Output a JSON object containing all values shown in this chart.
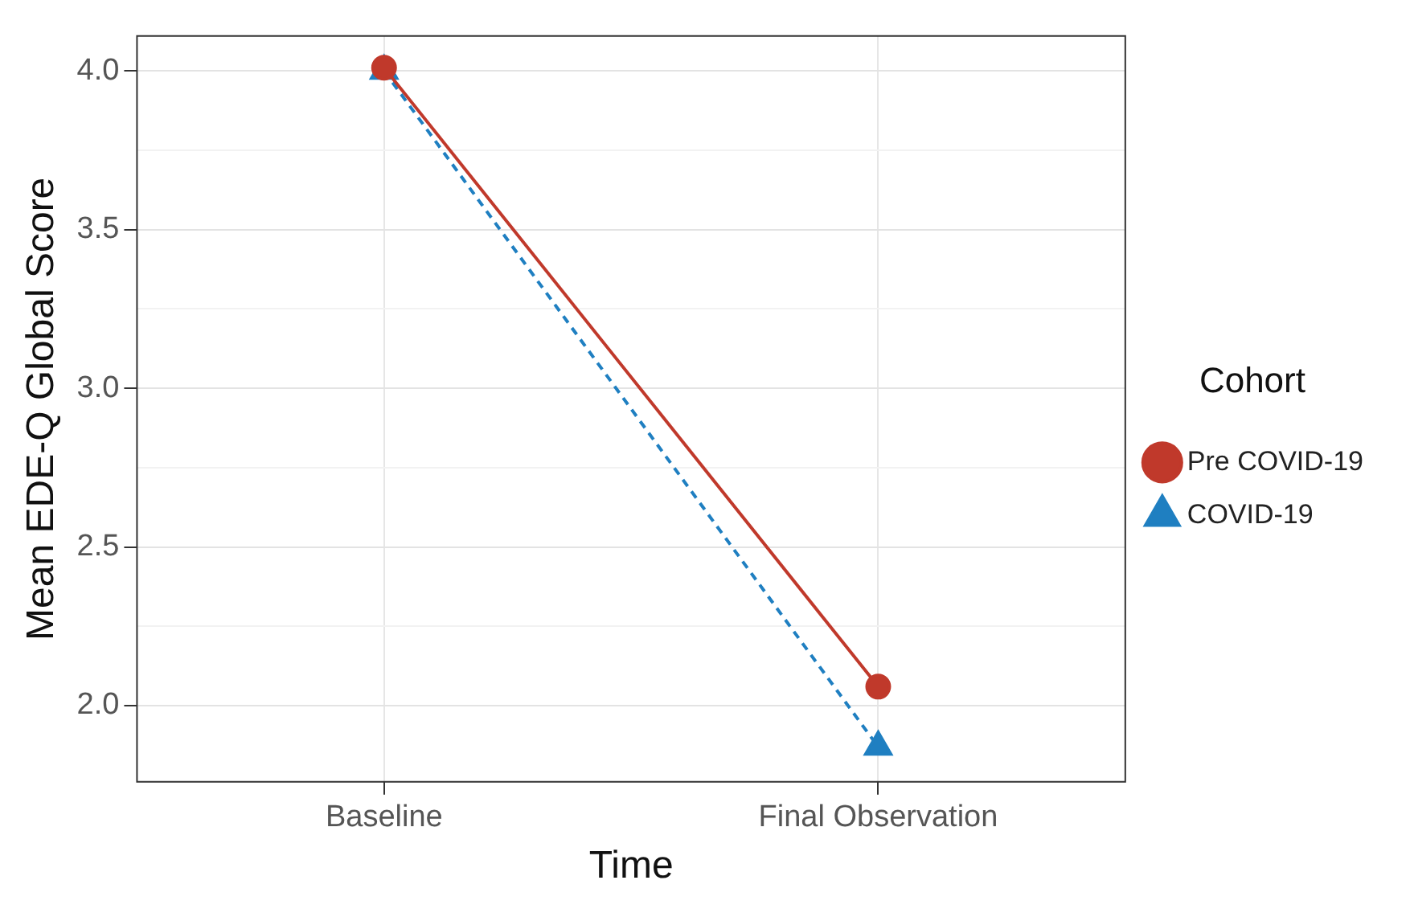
{
  "chart_data": {
    "type": "line",
    "xlabel": "Time",
    "ylabel": "Mean EDE-Q Global Score",
    "legend_title": "Cohort",
    "categories": [
      "Baseline",
      "Final Observation"
    ],
    "series": [
      {
        "name": "Pre COVID-19",
        "color": "#c0392b",
        "values": [
          4.01,
          2.06
        ],
        "marker": "circle",
        "line_style": "solid"
      },
      {
        "name": "COVID-19",
        "color": "#1f7fc1",
        "values": [
          4.0,
          1.87
        ],
        "marker": "triangle",
        "line_style": "dashed"
      }
    ],
    "ylim": [
      1.76,
      4.11
    ],
    "yticks": [
      {
        "value": 2,
        "label": "2.0"
      },
      {
        "value": 2.25,
        "label": null
      },
      {
        "value": 2.5,
        "label": "2.5"
      },
      {
        "value": 2.75,
        "label": null
      },
      {
        "value": 3,
        "label": "3.0"
      },
      {
        "value": 3.25,
        "label": null
      },
      {
        "value": 3.5,
        "label": "3.5"
      },
      {
        "value": 3.75,
        "label": null
      },
      {
        "value": 4,
        "label": "4.0"
      }
    ],
    "grid": true,
    "legend": "right"
  }
}
